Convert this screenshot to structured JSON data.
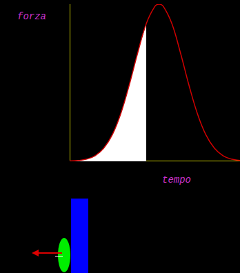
{
  "chart_data": {
    "type": "line",
    "xlabel": "tempo",
    "ylabel": "forza",
    "x": [
      0,
      0.5,
      1,
      1.5,
      2,
      2.5,
      3,
      3.5,
      4,
      4.5,
      5,
      5.25,
      5.5,
      6,
      6.5,
      7,
      7.5,
      8,
      8.5,
      9,
      9.5,
      10
    ],
    "series": [
      {
        "type": "line",
        "color": "#d00000",
        "values": [
          0.2,
          0.5,
          1.4,
          3.6,
          8.3,
          16.8,
          30.3,
          48.6,
          69.2,
          87.6,
          98.5,
          100,
          98.5,
          87.6,
          69.2,
          48.6,
          30.3,
          16.8,
          8.3,
          3.6,
          1.4,
          0.5
        ]
      },
      {
        "type": "area",
        "color": "#ffffff",
        "values": [
          0.2,
          0.5,
          1.4,
          3.6,
          8.3,
          16.8,
          30.3,
          48.6,
          69.2,
          87.6,
          null,
          null,
          null,
          null,
          null,
          null,
          null,
          null,
          null,
          null,
          null,
          null
        ]
      }
    ],
    "xlim": [
      0,
      10
    ],
    "ylim": [
      0,
      100
    ],
    "tick_labels": false,
    "grid": false
  }
}
